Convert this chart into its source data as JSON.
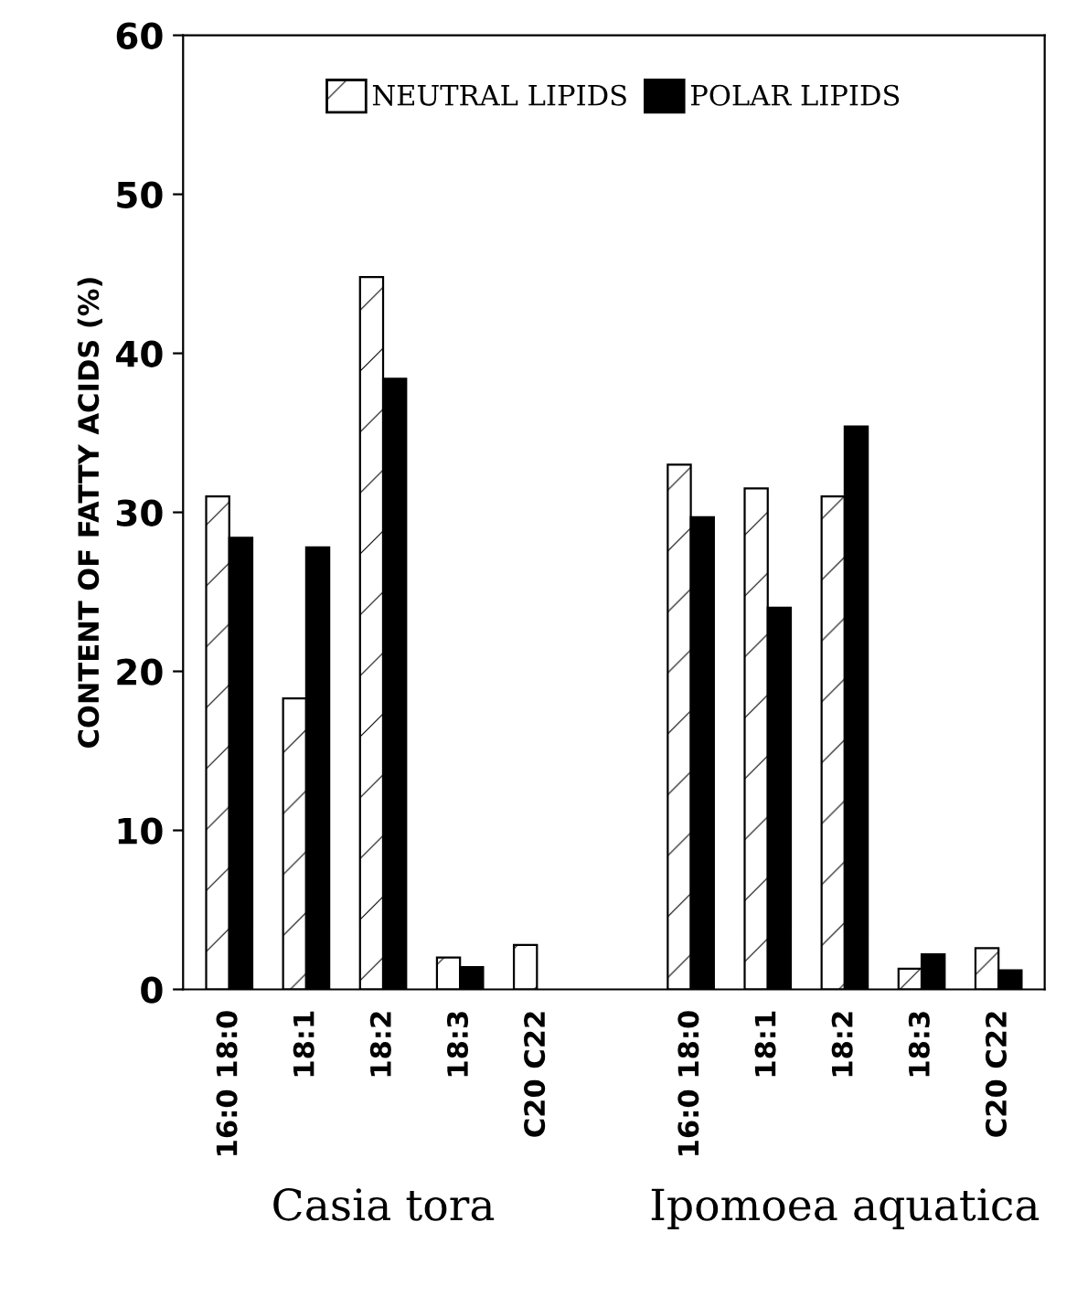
{
  "chart_data": {
    "type": "bar",
    "ylabel": "CONTENT OF FATTY ACIDS (%)",
    "categories": [
      "16:0 18:0",
      "18:1",
      "18:2",
      "18:3",
      "C20 C22",
      null,
      "16:0 18:0",
      "18:1",
      "18:2",
      "18:3",
      "C20 C22"
    ],
    "series": [
      {
        "name": "NEUTRAL LIPIDS",
        "color": "#ffffff",
        "values": [
          31,
          18.3,
          44.8,
          2.0,
          2.8,
          null,
          33,
          31.5,
          31,
          1.3,
          2.6
        ]
      },
      {
        "name": "POLAR LIPIDS",
        "color": "#000000",
        "values": [
          28.4,
          27.8,
          38.4,
          1.4,
          null,
          null,
          29.7,
          24,
          35.4,
          2.2,
          1.2
        ]
      }
    ],
    "annotations": [
      "Casia tora",
      "Ipomoea aquatica"
    ],
    "ylim": [
      0,
      60
    ],
    "yticks": [
      0,
      10,
      20,
      30,
      40,
      50,
      60
    ],
    "grid": false,
    "legend": "top"
  }
}
